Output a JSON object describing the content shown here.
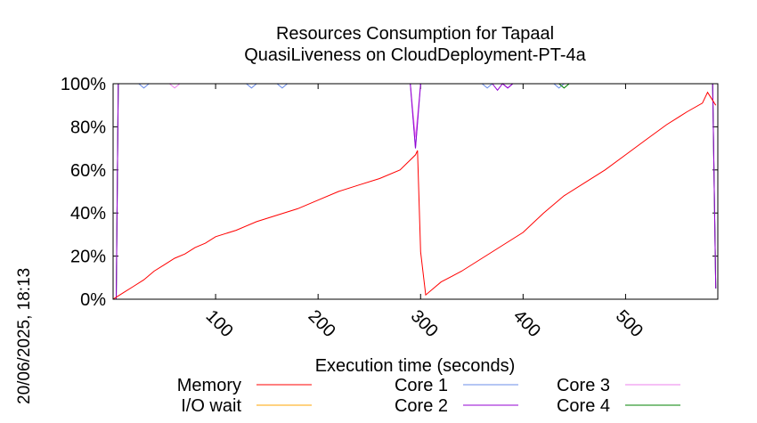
{
  "chart_data": {
    "type": "line",
    "title": "Resources Consumption for Tapaal",
    "subtitle": "QuasiLiveness on CloudDeployment-PT-4a",
    "xlabel": "Execution time (seconds)",
    "ylabel": "",
    "timestamp": "20/06/2025, 18:13",
    "xlim": [
      0,
      590
    ],
    "ylim": [
      0,
      100
    ],
    "x_ticks": [
      100,
      200,
      300,
      400,
      500
    ],
    "x_tick_labels": [
      "100",
      "200",
      "300",
      "400",
      "500"
    ],
    "y_ticks": [
      0,
      20,
      40,
      60,
      80,
      100
    ],
    "y_tick_labels": [
      "0%",
      "20%",
      "40%",
      "60%",
      "80%",
      "100%"
    ],
    "legend_position": "bottom",
    "series": [
      {
        "name": "Memory",
        "color": "#ff0000",
        "x": [
          0,
          10,
          20,
          30,
          40,
          50,
          60,
          70,
          80,
          90,
          100,
          120,
          140,
          160,
          180,
          200,
          220,
          240,
          260,
          280,
          295,
          297,
          300,
          305,
          320,
          340,
          360,
          380,
          400,
          420,
          440,
          460,
          480,
          500,
          520,
          540,
          560,
          575,
          580,
          588
        ],
        "values": [
          0,
          3,
          6,
          9,
          13,
          16,
          19,
          21,
          24,
          26,
          29,
          32,
          36,
          39,
          42,
          46,
          50,
          53,
          56,
          60,
          67,
          69,
          22,
          2,
          8,
          13,
          19,
          25,
          31,
          40,
          48,
          54,
          60,
          67,
          74,
          81,
          87,
          91,
          96,
          90
        ]
      },
      {
        "name": "I/O wait",
        "color": "#ffa500",
        "x": [
          0,
          2,
          590
        ],
        "values": [
          0,
          0,
          0
        ]
      },
      {
        "name": "Core 1",
        "color": "#6b8ce8",
        "x": [
          0,
          3,
          5,
          25,
          30,
          35,
          60,
          130,
          135,
          140,
          160,
          165,
          170,
          290,
          295,
          300,
          305,
          360,
          365,
          370,
          380,
          385,
          390,
          430,
          435,
          440,
          580,
          585,
          588
        ],
        "values": [
          0,
          0,
          100,
          100,
          98,
          100,
          100,
          100,
          98,
          100,
          100,
          98,
          100,
          100,
          70,
          100,
          100,
          100,
          98,
          100,
          100,
          98,
          100,
          100,
          98,
          100,
          100,
          100,
          5
        ]
      },
      {
        "name": "Core 2",
        "color": "#9400d3",
        "x": [
          0,
          3,
          5,
          290,
          295,
          300,
          305,
          370,
          375,
          380,
          385,
          390,
          580,
          585,
          588
        ],
        "values": [
          0,
          0,
          100,
          100,
          70,
          100,
          100,
          100,
          97,
          100,
          98,
          100,
          100,
          100,
          5
        ]
      },
      {
        "name": "Core 3",
        "color": "#ee82ee",
        "x": [
          0,
          3,
          5,
          55,
          60,
          65,
          290,
          295,
          300,
          305,
          380,
          385,
          390,
          580,
          585,
          588
        ],
        "values": [
          0,
          0,
          100,
          100,
          98,
          100,
          100,
          75,
          100,
          100,
          100,
          98,
          100,
          100,
          100,
          5
        ]
      },
      {
        "name": "Core 4",
        "color": "#008000",
        "x": [
          0,
          3,
          5,
          290,
          295,
          300,
          305,
          435,
          440,
          445,
          580,
          585,
          588
        ],
        "values": [
          0,
          0,
          100,
          100,
          100,
          100,
          100,
          100,
          98,
          100,
          100,
          100,
          5
        ]
      }
    ]
  }
}
